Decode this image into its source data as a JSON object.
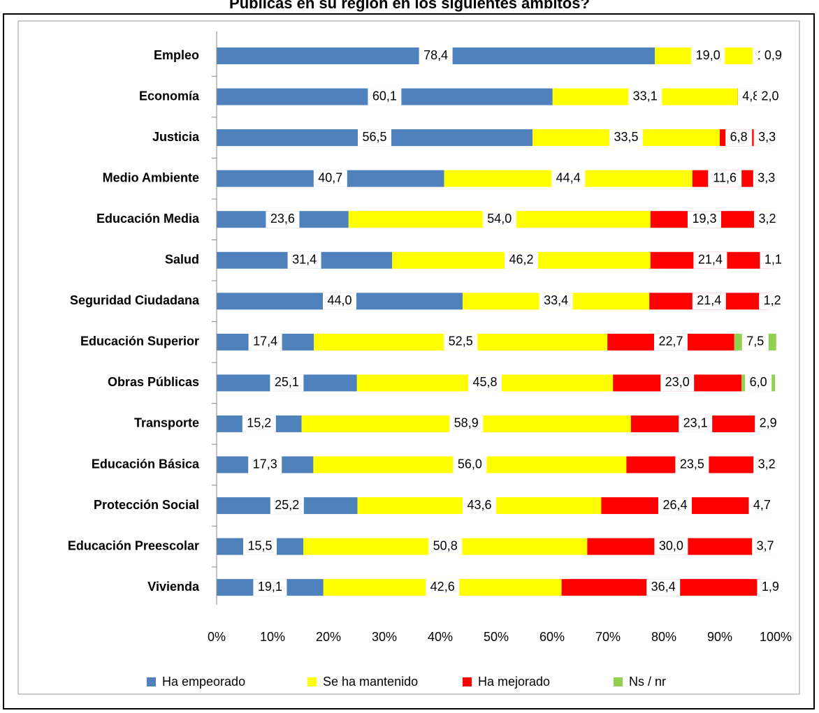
{
  "chart_data": {
    "type": "bar",
    "orientation": "horizontal",
    "stacked": true,
    "title": "Públicas en su región en los siguientes ámbitos?",
    "categories": [
      "Empleo",
      "Economía",
      "Justicia",
      "Medio Ambiente",
      "Educación Media",
      "Salud",
      "Seguridad Ciudadana",
      "Educación Superior",
      "Obras Públicas",
      "Transporte",
      "Educación Básica",
      "Protección Social",
      "Educación Preescolar",
      "Vivienda"
    ],
    "series": [
      {
        "name": "Ha empeorado",
        "color": "#4f81bd",
        "values": [
          78.4,
          60.1,
          56.5,
          40.7,
          23.6,
          31.4,
          44.0,
          17.4,
          25.1,
          15.2,
          17.3,
          25.2,
          15.5,
          19.1
        ],
        "value_labels": [
          "78,4",
          "60,1",
          "56,5",
          "40,7",
          "23,6",
          "31,4",
          "44,0",
          "17,4",
          "25,1",
          "15,2",
          "17,3",
          "25,2",
          "15,5",
          "19,1"
        ]
      },
      {
        "name": "Se ha mantenido",
        "color": "#ffff00",
        "values": [
          19.0,
          33.1,
          33.5,
          44.4,
          54.0,
          46.2,
          33.4,
          52.5,
          45.8,
          58.9,
          56.0,
          43.6,
          50.8,
          42.6
        ],
        "value_labels": [
          "19,0",
          "33,1",
          "33,5",
          "44,4",
          "54,0",
          "46,2",
          "33,4",
          "52,5",
          "45,8",
          "58,9",
          "56,0",
          "43,6",
          "50,8",
          "42,6"
        ]
      },
      {
        "name": "Ha mejorado",
        "color": "#ff0000",
        "values": [
          1.7,
          4.8,
          6.8,
          11.6,
          19.3,
          21.4,
          21.4,
          22.7,
          23.0,
          23.1,
          23.5,
          26.4,
          30.0,
          36.4
        ],
        "value_labels": [
          "1,7",
          "4,8",
          "6,8",
          "11,6",
          "19,3",
          "21,4",
          "21,4",
          "22,7",
          "23,0",
          "23,1",
          "23,5",
          "26,4",
          "30,0",
          "36,4"
        ]
      },
      {
        "name": "Ns / nr",
        "color": "#92d050",
        "values": [
          0.9,
          2.0,
          3.3,
          3.3,
          3.2,
          1.1,
          1.2,
          7.5,
          6.0,
          2.9,
          3.2,
          4.7,
          3.7,
          1.9
        ],
        "value_labels": [
          "0,9",
          "2,0",
          "3,3",
          "3,3",
          "3,2",
          "1,1",
          "1,2",
          "7,5",
          "6,0",
          "2,9",
          "3,2",
          "4,7",
          "3,7",
          "1,9"
        ]
      }
    ],
    "xlim": [
      0,
      100
    ],
    "xticks": [
      {
        "value": 0,
        "label": "0%"
      },
      {
        "value": 10,
        "label": "10%"
      },
      {
        "value": 20,
        "label": "20%"
      },
      {
        "value": 30,
        "label": "30%"
      },
      {
        "value": 40,
        "label": "40%"
      },
      {
        "value": 50,
        "label": "50%"
      },
      {
        "value": 60,
        "label": "60%"
      },
      {
        "value": 70,
        "label": "70%"
      },
      {
        "value": 80,
        "label": "80%"
      },
      {
        "value": 90,
        "label": "90%"
      },
      {
        "value": 100,
        "label": "100%"
      }
    ],
    "legend": "bottom"
  }
}
